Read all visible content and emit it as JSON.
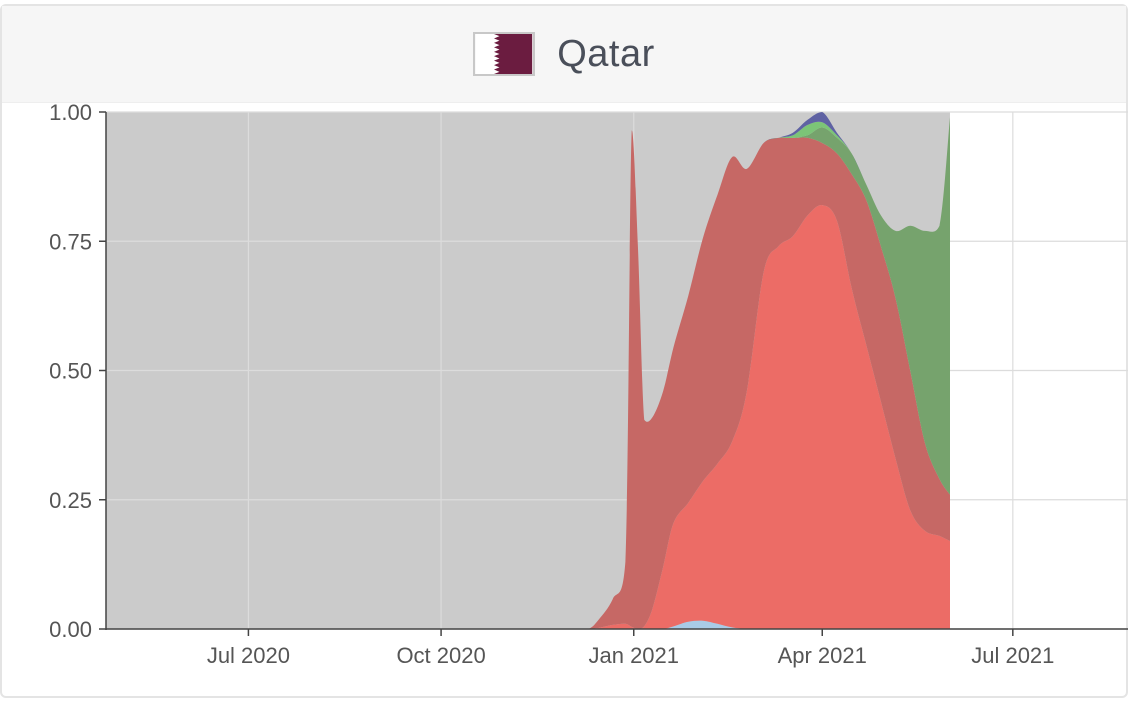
{
  "header": {
    "title": "Qatar",
    "flag_icon": "qatar-flag-icon",
    "flag_colors": {
      "maroon": "#6b1c40",
      "white": "#ffffff"
    }
  },
  "chart_data": {
    "type": "area",
    "stacked": true,
    "normalized": true,
    "x_axis": {
      "type": "date",
      "range": [
        "2020-04-24",
        "2021-08-25"
      ],
      "ticks": [
        "2020-07-01",
        "2020-10-01",
        "2021-01-01",
        "2021-04-01",
        "2021-07-01"
      ],
      "tick_labels": [
        "Jul 2020",
        "Oct 2020",
        "Jan 2021",
        "Apr 2021",
        "Jul 2021"
      ]
    },
    "y_axis": {
      "range": [
        0,
        1
      ],
      "ticks": [
        0,
        0.25,
        0.5,
        0.75,
        1.0
      ],
      "tick_labels": [
        "0.00",
        "0.25",
        "0.50",
        "0.75",
        "1.00"
      ]
    },
    "grid": true,
    "plot_background": "#cbcbcb",
    "data_end": "2021-06-01",
    "x": [
      "2020-04-24",
      "2020-06-01",
      "2020-09-01",
      "2020-12-01",
      "2020-12-10",
      "2020-12-15",
      "2020-12-22",
      "2020-12-28",
      "2020-12-31",
      "2021-01-03",
      "2021-01-06",
      "2021-01-10",
      "2021-01-15",
      "2021-01-20",
      "2021-01-27",
      "2021-02-03",
      "2021-02-10",
      "2021-02-17",
      "2021-02-24",
      "2021-03-04",
      "2021-03-11",
      "2021-03-18",
      "2021-03-25",
      "2021-04-01",
      "2021-04-08",
      "2021-04-15",
      "2021-04-22",
      "2021-04-29",
      "2021-05-06",
      "2021-05-13",
      "2021-05-20",
      "2021-05-27",
      "2021-06-01"
    ],
    "series": [
      {
        "color": "#a9cbe6",
        "values": [
          0,
          0,
          0,
          0,
          0,
          0,
          0,
          0,
          0,
          0,
          0,
          0,
          0,
          0.005,
          0.014,
          0.016,
          0.01,
          0.003,
          0,
          0,
          0,
          0,
          0,
          0,
          0,
          0,
          0,
          0,
          0,
          0,
          0,
          0,
          0
        ]
      },
      {
        "color": "#ec6c66",
        "values": [
          0,
          0,
          0,
          0,
          0,
          0.002,
          0.008,
          0.01,
          0.004,
          0,
          0.005,
          0.04,
          0.12,
          0.2,
          0.23,
          0.27,
          0.31,
          0.36,
          0.46,
          0.69,
          0.74,
          0.76,
          0.8,
          0.82,
          0.79,
          0.66,
          0.55,
          0.44,
          0.33,
          0.23,
          0.19,
          0.18,
          0.17
        ]
      },
      {
        "color": "#c66865",
        "values": [
          0,
          0,
          0,
          0,
          0,
          0.015,
          0.05,
          0.12,
          0.96,
          0.74,
          0.4,
          0.37,
          0.34,
          0.34,
          0.4,
          0.47,
          0.52,
          0.55,
          0.43,
          0.25,
          0.21,
          0.19,
          0.15,
          0.12,
          0.13,
          0.22,
          0.28,
          0.3,
          0.31,
          0.27,
          0.17,
          0.11,
          0.09
        ]
      },
      {
        "color": "#76a36d",
        "values": [
          0,
          0,
          0,
          0,
          0,
          0,
          0,
          0,
          0,
          0,
          0,
          0,
          0,
          0,
          0,
          0,
          0,
          0,
          0,
          0,
          0,
          0,
          0.005,
          0.03,
          0.03,
          0.04,
          0.03,
          0.06,
          0.13,
          0.28,
          0.41,
          0.49,
          0.73
        ]
      },
      {
        "color": "#7cc477",
        "values": [
          0,
          0,
          0,
          0,
          0,
          0,
          0,
          0,
          0,
          0,
          0,
          0,
          0,
          0,
          0,
          0,
          0,
          0,
          0,
          0,
          0,
          0.005,
          0.02,
          0.01,
          0.005,
          0,
          0,
          0,
          0,
          0,
          0,
          0,
          0
        ]
      },
      {
        "color": "#5f62a3",
        "values": [
          0,
          0,
          0,
          0,
          0,
          0,
          0,
          0,
          0,
          0,
          0,
          0,
          0,
          0,
          0,
          0,
          0,
          0,
          0,
          0,
          0,
          0.005,
          0.01,
          0.02,
          0.005,
          0,
          0,
          0,
          0,
          0,
          0,
          0,
          0
        ]
      }
    ]
  }
}
